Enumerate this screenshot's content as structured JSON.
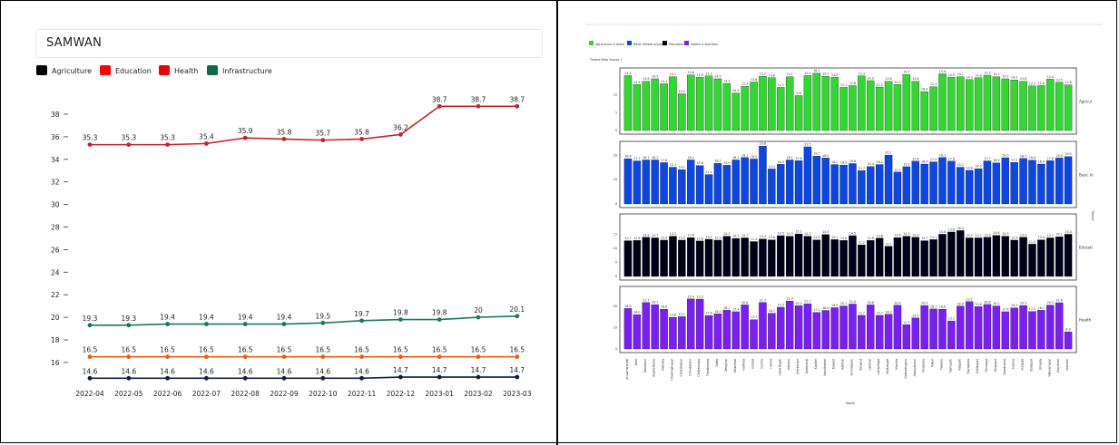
{
  "chart_data": [
    {
      "type": "line",
      "title": "SAMWAN",
      "x": [
        "2022-04",
        "2022-05",
        "2022-06",
        "2022-07",
        "2022-08",
        "2022-09",
        "2022-10",
        "2022-11",
        "2022-12",
        "2023-01",
        "2023-02",
        "2023-03"
      ],
      "series": [
        {
          "name": "Agriculture",
          "color": "#0d1f3c",
          "values": [
            14.6,
            14.6,
            14.6,
            14.6,
            14.6,
            14.6,
            14.6,
            14.6,
            14.7,
            14.7,
            14.7,
            14.7
          ]
        },
        {
          "name": "Education",
          "color": "#e8601c",
          "values": [
            16.5,
            16.5,
            16.5,
            16.5,
            16.5,
            16.5,
            16.5,
            16.5,
            16.5,
            16.5,
            16.5,
            16.5
          ]
        },
        {
          "name": "Health",
          "color": "#c0252a",
          "values": [
            35.3,
            35.3,
            35.3,
            35.4,
            35.9,
            35.8,
            35.7,
            35.8,
            36.2,
            38.7,
            38.7,
            38.7
          ]
        },
        {
          "name": "Infrastructure",
          "color": "#1a7a4f",
          "values": [
            19.3,
            19.3,
            19.4,
            19.4,
            19.4,
            19.4,
            19.5,
            19.7,
            19.8,
            19.8,
            20,
            20.1
          ]
        }
      ],
      "legend_swatches": [
        "#000000",
        "#ff0000",
        "#e8000d",
        "#0f6b46"
      ],
      "yticks": [
        16,
        18,
        20,
        22,
        24,
        26,
        28,
        30,
        32,
        34,
        36,
        38
      ],
      "ylim": [
        14.5,
        39.2
      ],
      "grid": false,
      "legend_position": "top-left"
    },
    {
      "type": "bar",
      "title": "Theme Wise Scores ↑",
      "xlabel": "Name",
      "ylabel": "Theme",
      "legend_position": "top-left",
      "categories": [
        "AH-Amaravati",
        "Babi",
        "Badalpur",
        "Bagherkeda",
        "Barnala",
        "Chamrajnagar",
        "Chandrapur",
        "Chhatarpur",
        "Chitradurga",
        "Dantewada",
        "Datia",
        "Deoghar",
        "Dhamtari",
        "Garhwa",
        "Godda",
        "Gumla",
        "Hardoi",
        "Hazaribagh",
        "Jashpur",
        "Jharkhand",
        "Kalahandi",
        "Kanker",
        "Kandhamal",
        "Karauli",
        "Katihar",
        "Kondagaon",
        "Koraput",
        "Latehar",
        "Lohardaga",
        "Malkangiri",
        "Mandla",
        "Nabarangpur",
        "Narayanpur",
        "Nuapada",
        "Pakur",
        "Palamu",
        "Ramgarh",
        "Raigarh",
        "Rayagada",
        "Sahibganj",
        "Simdega",
        "Singrauli",
        "Sonbhadra",
        "Sukma",
        "Surguja",
        "Udalguri",
        "Umaria",
        "Vijayanagar",
        "Wayanad",
        "Washim"
      ],
      "facets": [
        {
          "name": "Agriculture & Allied",
          "label": "Agricul",
          "color": "#33d633",
          "ymax": 15,
          "yticks": [
            0,
            5,
            10
          ],
          "values": [
            15.4,
            12.9,
            13.8,
            14.5,
            13.1,
            15.1,
            10.3,
            15.6,
            14.9,
            15.3,
            14.5,
            13.2,
            10.5,
            12.4,
            13.6,
            15.2,
            14.8,
            12.1,
            15.1,
            9.8,
            15.4,
            16.1,
            15.2,
            14.9,
            12.1,
            12.6,
            15.3,
            14.0,
            12.2,
            13.8,
            12.9,
            15.7,
            13.8,
            10.9,
            12.3,
            15.9,
            14.9,
            15.1,
            14.3,
            14.8,
            15.5,
            15.1,
            14.5,
            14.2,
            13.8,
            12.5,
            12.6,
            14.4,
            13.5,
            12.8
          ],
          "labels": [
            "15.4",
            "12.9",
            "13.8",
            "14.5",
            "13.1",
            "15.1",
            "10.3",
            "15.6",
            "14.9",
            "15.3",
            "14.5",
            "13.2",
            "10.5",
            "12.4",
            "13.6",
            "15.2",
            "14.8",
            "12.1",
            "15.1",
            "9.8",
            "15.4",
            "16.1",
            "15.2",
            "14.9",
            "12.1",
            "12.6",
            "15.3",
            "14.0",
            "12.2",
            "13.8",
            "12.9",
            "15.7",
            "13.8",
            "10.9",
            "12.3",
            "15.9",
            "14.9",
            "15.1",
            "14.3",
            "14.8",
            "15.5",
            "15.1",
            "14.5",
            "14.2",
            "13.8",
            "12.5",
            "12.6",
            "14.4",
            "13.5",
            "12.8"
          ]
        },
        {
          "name": "Basic Infrastructure",
          "label": "Basic In",
          "color": "#0d47e0",
          "ymax": 22,
          "yticks": [
            0,
            10,
            20
          ],
          "values": [
            18.6,
            17.7,
            18.1,
            18.1,
            17.0,
            15.1,
            14.1,
            18.1,
            15.8,
            12.1,
            16.7,
            15.9,
            18.1,
            19.1,
            18.5,
            23.8,
            14.4,
            16.3,
            18.1,
            17.8,
            23.5,
            19.7,
            18.9,
            16.2,
            16.0,
            16.6,
            13.7,
            15.4,
            16.2,
            20.1,
            13.1,
            15.3,
            17.6,
            16.4,
            17.3,
            19.1,
            17.6,
            15.1,
            13.8,
            14.5,
            17.7,
            16.9,
            19.0,
            17.1,
            18.7,
            18.0,
            16.4,
            17.8,
            18.9,
            19.5
          ],
          "labels": [
            "18.6",
            "17.7",
            "18.1",
            "18.1",
            "17.0",
            "15.1",
            "14.1",
            "18.1",
            "15.8",
            "12.1",
            "16.7",
            "15.9",
            "18.1",
            "19.1",
            "18.5",
            "23.8",
            "14.4",
            "16.3",
            "18.1",
            "17.8",
            "23.5",
            "19.7",
            "18.9",
            "16.2",
            "16.0",
            "16.6",
            "13.7",
            "15.4",
            "16.2",
            "20.1",
            "13.1",
            "15.3",
            "17.6",
            "16.4",
            "17.3",
            "19.1",
            "17.6",
            "15.1",
            "13.8",
            "14.5",
            "17.7",
            "16.9",
            "19.0",
            "17.1",
            "18.7",
            "18.0",
            "16.4",
            "17.8",
            "18.9",
            "19.5"
          ]
        },
        {
          "name": "Education",
          "label": "Educati",
          "color": "#000018",
          "ymax": 19,
          "yticks": [
            0,
            5,
            10,
            15
          ],
          "values": [
            12.7,
            12.8,
            13.9,
            13.7,
            12.9,
            14.3,
            12.9,
            13.8,
            12.6,
            13.2,
            12.9,
            14.3,
            13.5,
            13.7,
            12.4,
            13.3,
            13.0,
            14.5,
            14.3,
            15.1,
            14.3,
            13.0,
            14.9,
            13.1,
            12.8,
            14.5,
            11.2,
            12.8,
            13.6,
            10.7,
            13.8,
            14.3,
            13.9,
            12.7,
            13.1,
            15.0,
            15.8,
            16.3,
            13.7,
            13.7,
            13.9,
            14.6,
            14.3,
            12.9,
            13.9,
            11.5,
            13.0,
            13.7,
            14.1,
            15.0
          ],
          "labels": [
            "12.7",
            "12.8",
            "13.9",
            "13.7",
            "12.9",
            "14.3",
            "12.9",
            "13.8",
            "12.6",
            "13.2",
            "12.9",
            "14.3",
            "13.5",
            "13.7",
            "12.4",
            "13.3",
            "13.0",
            "14.5",
            "14.3",
            "15.1",
            "14.3",
            "13.0",
            "14.9",
            "13.1",
            "12.8",
            "14.5",
            "11.2",
            "12.8",
            "13.6",
            "10.7",
            "13.8",
            "14.3",
            "13.9",
            "12.7",
            "13.1",
            "15.0",
            "15.8",
            "16.3",
            "13.7",
            "13.7",
            "13.9",
            "14.6",
            "14.3",
            "12.9",
            "13.9",
            "11.5",
            "13.0",
            "13.7",
            "14.1",
            "15.0"
          ]
        },
        {
          "name": "Health & Nutrition",
          "label": "Health",
          "color": "#7a1ff0",
          "ymax": 25,
          "yticks": [
            0,
            10,
            20
          ],
          "values": [
            18.9,
            16.0,
            21.7,
            20.7,
            18.6,
            14.8,
            15.1,
            23.4,
            23.3,
            15.6,
            16.4,
            18.1,
            17.4,
            20.6,
            13.7,
            21.7,
            16.7,
            19.5,
            22.4,
            20.2,
            21.1,
            17.1,
            18.0,
            19.3,
            20.1,
            21.0,
            15.7,
            20.6,
            15.7,
            16.2,
            20.4,
            11.3,
            14.5,
            20.3,
            18.7,
            18.6,
            13.1,
            20.0,
            22.1,
            19.8,
            20.8,
            20.1,
            17.4,
            19.2,
            20.3,
            17.5,
            18.1,
            20.5,
            21.6,
            8.0
          ],
          "labels": [
            "18.9",
            "16.0",
            "21.7",
            "20.7",
            "18.6",
            "14.8",
            "15.1",
            "23.4",
            "23.3",
            "15.6",
            "16.4",
            "18.1",
            "17.4",
            "20.6",
            "13.7",
            "21.7",
            "16.7",
            "19.5",
            "22.4",
            "20.2",
            "21.1",
            "17.1",
            "18.0",
            "19.3",
            "20.1",
            "21.0",
            "15.7",
            "20.6",
            "15.7",
            "16.2",
            "20.4",
            "11.3",
            "14.5",
            "20.3",
            "18.7",
            "18.6",
            "13.1",
            "20.0",
            "22.1",
            "19.8",
            "20.8",
            "20.1",
            "17.4",
            "19.2",
            "20.3",
            "17.5",
            "18.1",
            "20.5",
            "21.6",
            "8.0"
          ]
        }
      ]
    }
  ]
}
